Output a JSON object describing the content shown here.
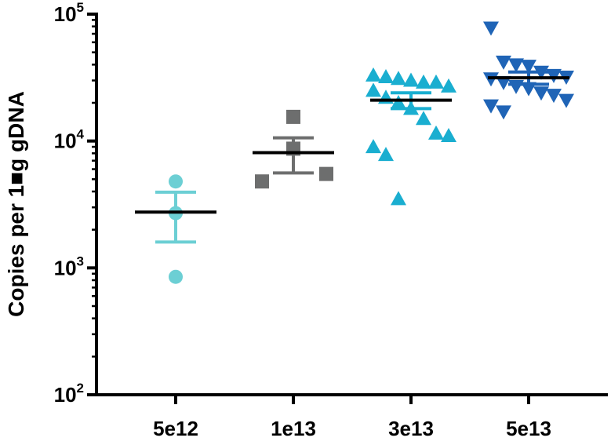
{
  "chart_data": {
    "type": "scatter",
    "title": "",
    "xlabel": "",
    "ylabel": "Copies per 1■g gDNA",
    "yscale": "log",
    "ylim": [
      100,
      100000
    ],
    "y_ticks": [
      {
        "base": "10",
        "exp": "2",
        "value": 100
      },
      {
        "base": "10",
        "exp": "3",
        "value": 1000
      },
      {
        "base": "10",
        "exp": "4",
        "value": 10000
      },
      {
        "base": "10",
        "exp": "5",
        "value": 100000
      }
    ],
    "categories": [
      "5e12",
      "1e13",
      "3e13",
      "5e13"
    ],
    "series": [
      {
        "category": "5e12",
        "marker": "circle",
        "color": "#6ccfd4",
        "points": [
          4800,
          2700,
          850
        ],
        "mean": 2750,
        "sem_low": 1600,
        "sem_high": 3950
      },
      {
        "category": "1e13",
        "marker": "square",
        "color": "#6d6e6e",
        "points": [
          15500,
          8700,
          5500,
          4800
        ],
        "mean": 8100,
        "sem_low": 5600,
        "sem_high": 10600
      },
      {
        "category": "3e13",
        "marker": "triangle-up",
        "color": "#1aaed0",
        "points": [
          33000,
          32000,
          31000,
          30000,
          29000,
          29000,
          27000,
          25000,
          22000,
          20000,
          18000,
          15000,
          11500,
          11000,
          9000,
          7800,
          3500
        ],
        "mean": 21000,
        "sem_low": 18000,
        "sem_high": 24000
      },
      {
        "category": "5e13",
        "marker": "triangle-down",
        "color": "#1f64b6",
        "points": [
          78000,
          42000,
          40000,
          39000,
          35000,
          33000,
          32000,
          31000,
          29000,
          27000,
          26000,
          24000,
          23000,
          21000,
          19000,
          17000
        ],
        "mean": 31500,
        "sem_low": 28000,
        "sem_high": 35000
      }
    ],
    "grid": false,
    "legend": "none",
    "mean_line_color": "#000000"
  }
}
